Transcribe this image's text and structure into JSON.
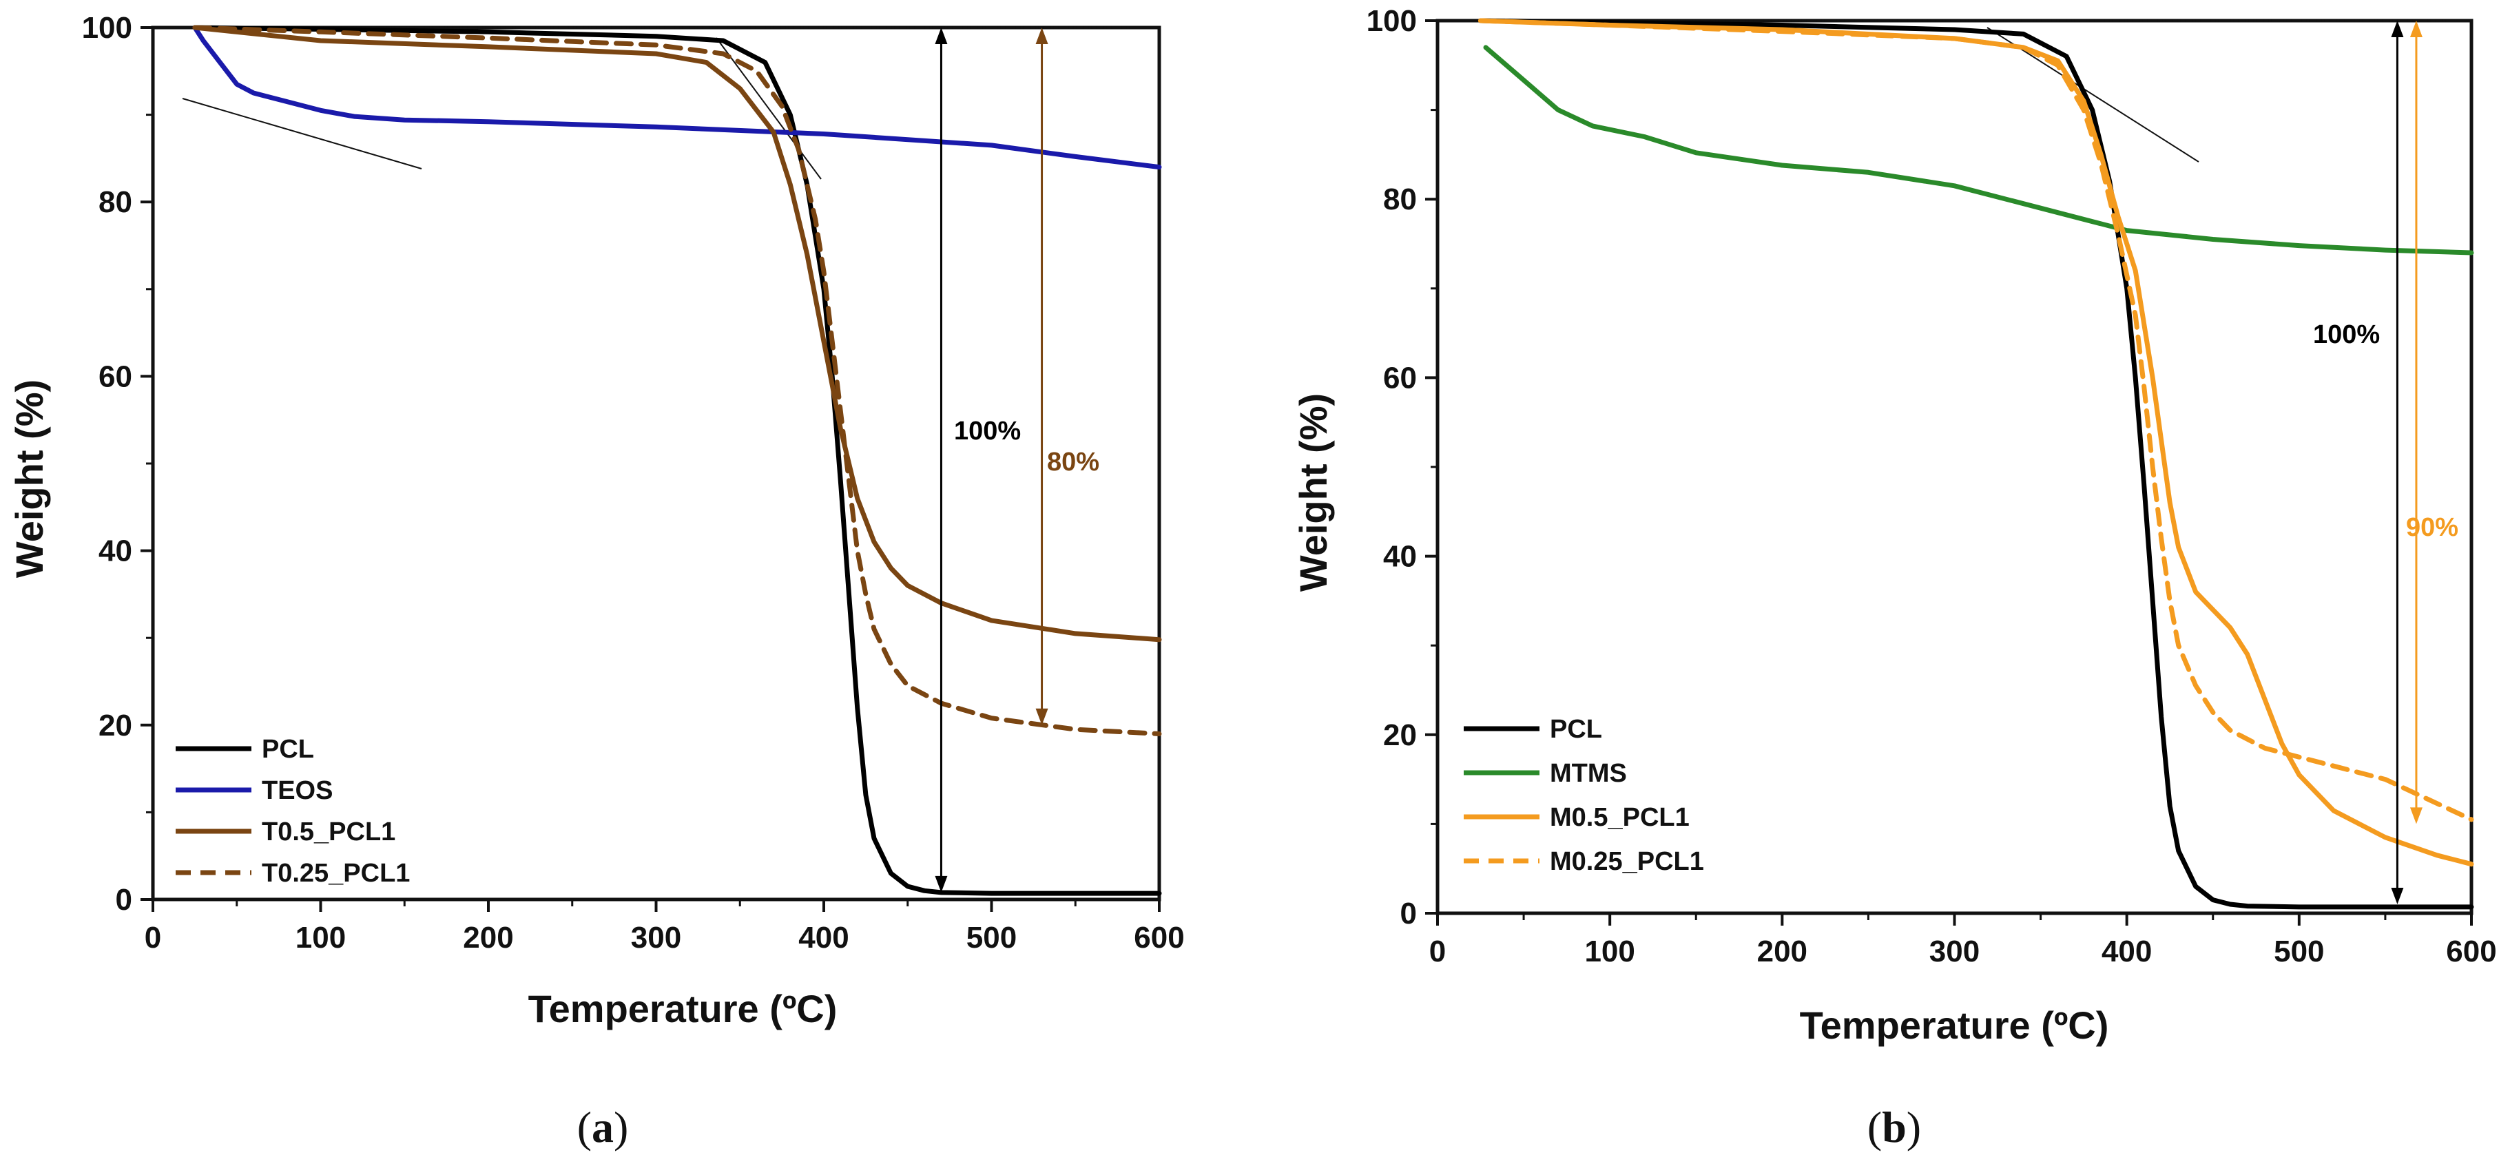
{
  "chart_data": [
    {
      "type": "line",
      "panel_label": "a",
      "xlabel": "Temperature (ºC)",
      "ylabel": "Weight (%)",
      "xlim": [
        0,
        600
      ],
      "ylim": [
        0,
        100
      ],
      "xticks": [
        0,
        100,
        200,
        300,
        400,
        500,
        600
      ],
      "yticks": [
        0,
        20,
        40,
        60,
        80,
        100
      ],
      "legend_position": "bottom-left",
      "reference_line": 100,
      "series": [
        {
          "name": "PCL",
          "color": "#000000",
          "dash": "solid",
          "x": [
            25,
            100,
            200,
            300,
            340,
            365,
            380,
            390,
            400,
            405,
            410,
            415,
            420,
            425,
            430,
            440,
            450,
            460,
            470,
            500,
            600
          ],
          "y": [
            100,
            99.8,
            99.5,
            99,
            98.5,
            96,
            90,
            82,
            70,
            60,
            48,
            35,
            22,
            12,
            7,
            3,
            1.5,
            1,
            0.8,
            0.7,
            0.7
          ]
        },
        {
          "name": "TEOS",
          "color": "#1a1aaa",
          "dash": "solid",
          "x": [
            25,
            30,
            40,
            50,
            60,
            80,
            100,
            120,
            150,
            200,
            300,
            400,
            500,
            550,
            600
          ],
          "y": [
            100,
            98.5,
            96,
            93.5,
            92.5,
            91.5,
            90.5,
            89.8,
            89.4,
            89.2,
            88.6,
            87.8,
            86.5,
            85.2,
            84
          ]
        },
        {
          "name": "T0.5_PCL1",
          "color": "#7a4512",
          "dash": "solid",
          "x": [
            25,
            100,
            200,
            300,
            330,
            350,
            370,
            380,
            390,
            400,
            405,
            410,
            415,
            420,
            430,
            440,
            450,
            470,
            500,
            550,
            600
          ],
          "y": [
            100,
            98.5,
            97.8,
            97,
            96,
            93,
            88,
            82,
            74,
            64,
            59,
            54,
            50,
            46,
            41,
            38,
            36,
            34,
            32,
            30.5,
            29.8
          ]
        },
        {
          "name": "T0.25_PCL1",
          "color": "#7a4512",
          "dash": "dashed",
          "x": [
            25,
            100,
            200,
            300,
            340,
            360,
            375,
            385,
            395,
            400,
            405,
            410,
            415,
            420,
            425,
            430,
            440,
            450,
            470,
            500,
            550,
            600
          ],
          "y": [
            100,
            99.5,
            98.8,
            98,
            97,
            95,
            91,
            86,
            78,
            72,
            64,
            56,
            48,
            40,
            35,
            31,
            27,
            24.5,
            22.5,
            20.8,
            19.5,
            19
          ]
        }
      ],
      "annotations": [
        {
          "text": "100%",
          "color": "#000000",
          "x": 470,
          "from": 100,
          "to": 0.8
        },
        {
          "text": "80%",
          "color": "#7a4512",
          "x": 530,
          "from": 100,
          "to": 20
        }
      ]
    },
    {
      "type": "line",
      "panel_label": "b",
      "xlabel": "Temperature (ºC)",
      "ylabel": "Weight (%)",
      "xlim": [
        0,
        600
      ],
      "ylim": [
        0,
        100
      ],
      "xticks": [
        0,
        100,
        200,
        300,
        400,
        500,
        600
      ],
      "yticks": [
        0,
        20,
        40,
        60,
        80,
        100
      ],
      "legend_position": "bottom-left",
      "reference_line": 100,
      "series": [
        {
          "name": "PCL",
          "color": "#000000",
          "dash": "solid",
          "x": [
            25,
            100,
            200,
            300,
            340,
            365,
            380,
            390,
            400,
            405,
            410,
            415,
            420,
            425,
            430,
            440,
            450,
            460,
            470,
            500,
            600
          ],
          "y": [
            100,
            99.8,
            99.5,
            99,
            98.5,
            96,
            90,
            82,
            70,
            60,
            48,
            35,
            22,
            12,
            7,
            3,
            1.5,
            1,
            0.8,
            0.7,
            0.7
          ]
        },
        {
          "name": "MTMS",
          "color": "#2a8a2a",
          "dash": "solid",
          "x": [
            28,
            40,
            55,
            70,
            90,
            120,
            150,
            200,
            250,
            300,
            350,
            400,
            450,
            500,
            550,
            600
          ],
          "y": [
            97,
            95,
            92.5,
            90,
            88.2,
            87,
            85.2,
            83.8,
            83,
            81.5,
            79,
            76.5,
            75.5,
            74.8,
            74.3,
            74
          ]
        },
        {
          "name": "M0.5_PCL1",
          "color": "#f49b1f",
          "dash": "solid",
          "x": [
            25,
            100,
            200,
            300,
            340,
            360,
            375,
            385,
            395,
            405,
            410,
            415,
            420,
            425,
            430,
            440,
            450,
            460,
            470,
            480,
            490,
            500,
            520,
            550,
            580,
            600
          ],
          "y": [
            100,
            99.5,
            99,
            98,
            97,
            95.5,
            91,
            85,
            78,
            72,
            66,
            60,
            53,
            46,
            41,
            36,
            34,
            32,
            29,
            24,
            19,
            15.5,
            11.5,
            8.5,
            6.5,
            5.5
          ]
        },
        {
          "name": "M0.25_PCL1",
          "color": "#f49b1f",
          "dash": "dashed",
          "x": [
            25,
            100,
            200,
            300,
            340,
            360,
            375,
            385,
            395,
            405,
            410,
            415,
            420,
            425,
            430,
            440,
            450,
            460,
            480,
            500,
            550,
            600
          ],
          "y": [
            100,
            99.5,
            98.8,
            98,
            97,
            95,
            90,
            84,
            76,
            67,
            59,
            50,
            42,
            35,
            30,
            25.5,
            22.5,
            20.5,
            18.5,
            17.5,
            15,
            10.5
          ]
        }
      ],
      "annotations": [
        {
          "text": "100%",
          "color": "#000000",
          "x": 557,
          "from": 100,
          "to": 1
        },
        {
          "text": "90%",
          "color": "#f49b1f",
          "x": 568,
          "from": 100,
          "to": 10
        }
      ]
    }
  ]
}
